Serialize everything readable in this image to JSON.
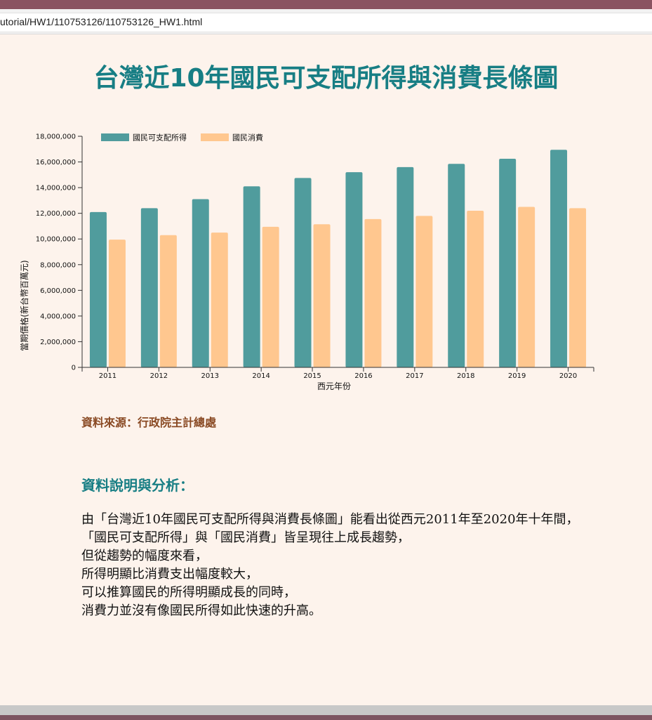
{
  "browser": {
    "url": "utorial/HW1/110753126/110753126_HW1.html"
  },
  "page": {
    "title": "台灣近10年國民可支配所得與消費長條圖",
    "source": "資料來源：行政院主計總處",
    "analysis_heading": "資料說明與分析：",
    "analysis_lines": [
      "由「台灣近10年國民可支配所得與消費長條圖」能看出從西元2011年至2020年十年間，",
      "「國民可支配所得」與「國民消費」皆呈現往上成長趨勢，",
      "但從趨勢的幅度來看，",
      "所得明顯比消費支出幅度較大，",
      "可以推算國民的所得明顯成長的同時，",
      "消費力並沒有像國民所得如此快速的升高。"
    ]
  },
  "colors": {
    "title": "#177e84",
    "source": "#8a4a24",
    "income": "#509c9d",
    "consumption": "#ffc78f"
  },
  "chart_data": {
    "type": "bar",
    "categories": [
      "2011",
      "2012",
      "2013",
      "2014",
      "2015",
      "2016",
      "2017",
      "2018",
      "2019",
      "2020"
    ],
    "series": [
      {
        "name": "國民可支配所得",
        "values": [
          12100000,
          12400000,
          13100000,
          14100000,
          14750000,
          15200000,
          15600000,
          15850000,
          16250000,
          16950000
        ]
      },
      {
        "name": "國民消費",
        "values": [
          9950000,
          10300000,
          10500000,
          10950000,
          11150000,
          11550000,
          11800000,
          12200000,
          12500000,
          12400000
        ]
      }
    ],
    "xlabel": "西元年份",
    "ylabel": "當期價格(新台幣百萬元)",
    "ylim": [
      0,
      18000000
    ],
    "yticks": [
      0,
      2000000,
      4000000,
      6000000,
      8000000,
      10000000,
      12000000,
      14000000,
      16000000,
      18000000
    ],
    "ytick_labels": [
      "0",
      "2,000,000",
      "4,000,000",
      "6,000,000",
      "8,000,000",
      "10,000,000",
      "12,000,000",
      "14,000,000",
      "16,000,000",
      "18,000,000"
    ],
    "legend": "top-left",
    "grid": false
  }
}
